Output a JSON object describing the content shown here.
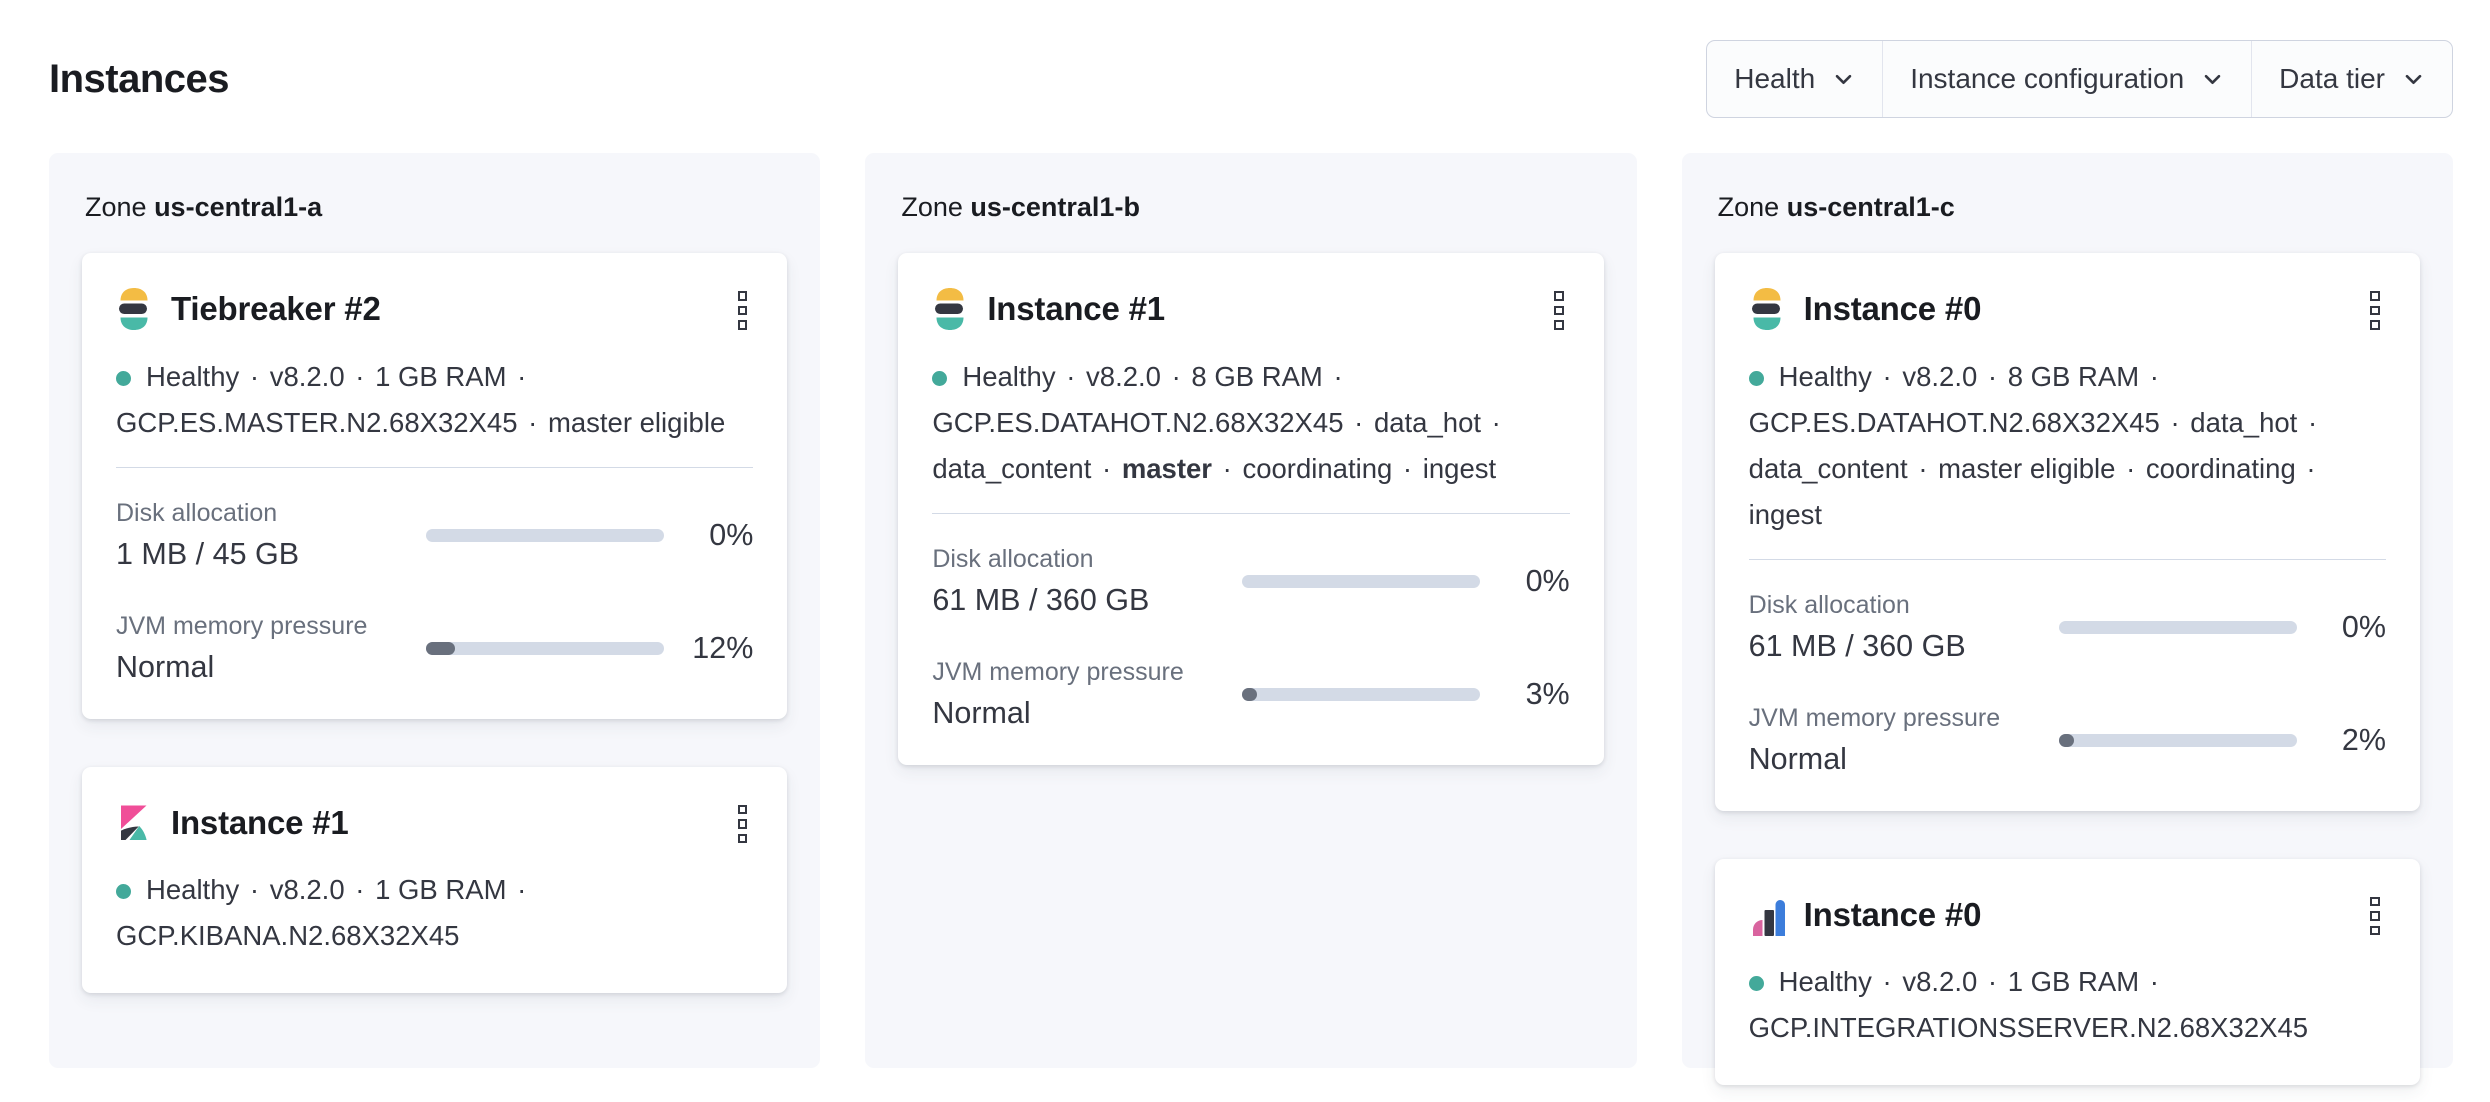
{
  "page": {
    "title": "Instances"
  },
  "filters": [
    {
      "label": "Health"
    },
    {
      "label": "Instance configuration"
    },
    {
      "label": "Data tier"
    }
  ],
  "colors": {
    "page_bg": "#ffffff",
    "panel_bg": "#f6f7fb",
    "card_bg": "#ffffff",
    "text": "#343741",
    "title_text": "#1a1c21",
    "subdued_text": "#69707d",
    "divider": "#d3dae6",
    "health_dot": "#43a99a",
    "bar_track": "#d3dae6",
    "bar_fill": "#69707d",
    "elastic_yellow": "#f3bc44",
    "elastic_dark": "#343741",
    "elastic_teal": "#49b9a7",
    "kibana_pink": "#f04e98",
    "integrations_pink": "#d9649f",
    "integrations_blue": "#3c7ddb"
  },
  "icons": {
    "menu": "boxes-vertical-icon",
    "dropdown": "chevron-down-icon",
    "health": "health-dot-icon"
  },
  "zones": [
    {
      "label": "Zone",
      "name": "us-central1-a",
      "cards": [
        {
          "logo": "elasticsearch",
          "title": "Tiebreaker #2",
          "meta": [
            {
              "text": "Healthy"
            },
            {
              "text": "v8.2.0"
            },
            {
              "text": "1 GB RAM"
            },
            {
              "text": "GCP.ES.MASTER.N2.68X32X45"
            },
            {
              "text": "master eligible"
            }
          ],
          "metrics": [
            {
              "label": "Disk allocation",
              "value": "1 MB / 45 GB",
              "percent": 0,
              "percent_label": "0%"
            },
            {
              "label": "JVM memory pressure",
              "value": "Normal",
              "percent": 12,
              "percent_label": "12%"
            }
          ]
        },
        {
          "logo": "kibana",
          "title": "Instance #1",
          "meta": [
            {
              "text": "Healthy"
            },
            {
              "text": "v8.2.0"
            },
            {
              "text": "1 GB RAM"
            },
            {
              "text": "GCP.KIBANA.N2.68X32X45"
            }
          ],
          "metrics": []
        }
      ]
    },
    {
      "label": "Zone",
      "name": "us-central1-b",
      "cards": [
        {
          "logo": "elasticsearch",
          "title": "Instance #1",
          "meta": [
            {
              "text": "Healthy"
            },
            {
              "text": "v8.2.0"
            },
            {
              "text": "8 GB RAM"
            },
            {
              "text": "GCP.ES.DATAHOT.N2.68X32X45"
            },
            {
              "text": "data_hot"
            },
            {
              "text": "data_content"
            },
            {
              "text": "master",
              "bold": true
            },
            {
              "text": "coordinating"
            },
            {
              "text": "ingest"
            }
          ],
          "metrics": [
            {
              "label": "Disk allocation",
              "value": "61 MB / 360 GB",
              "percent": 0,
              "percent_label": "0%"
            },
            {
              "label": "JVM memory pressure",
              "value": "Normal",
              "percent": 3,
              "percent_label": "3%"
            }
          ]
        }
      ]
    },
    {
      "label": "Zone",
      "name": "us-central1-c",
      "cards": [
        {
          "logo": "elasticsearch",
          "title": "Instance #0",
          "meta": [
            {
              "text": "Healthy"
            },
            {
              "text": "v8.2.0"
            },
            {
              "text": "8 GB RAM"
            },
            {
              "text": "GCP.ES.DATAHOT.N2.68X32X45"
            },
            {
              "text": "data_hot"
            },
            {
              "text": "data_content"
            },
            {
              "text": "master eligible"
            },
            {
              "text": "coordinating"
            },
            {
              "text": "ingest"
            }
          ],
          "metrics": [
            {
              "label": "Disk allocation",
              "value": "61 MB / 360 GB",
              "percent": 0,
              "percent_label": "0%"
            },
            {
              "label": "JVM memory pressure",
              "value": "Normal",
              "percent": 2,
              "percent_label": "2%"
            }
          ]
        },
        {
          "logo": "integrations-server",
          "title": "Instance #0",
          "meta": [
            {
              "text": "Healthy"
            },
            {
              "text": "v8.2.0"
            },
            {
              "text": "1 GB RAM"
            },
            {
              "text": "GCP.INTEGRATIONSSERVER.N2.68X32X45"
            }
          ],
          "metrics": []
        }
      ]
    }
  ]
}
